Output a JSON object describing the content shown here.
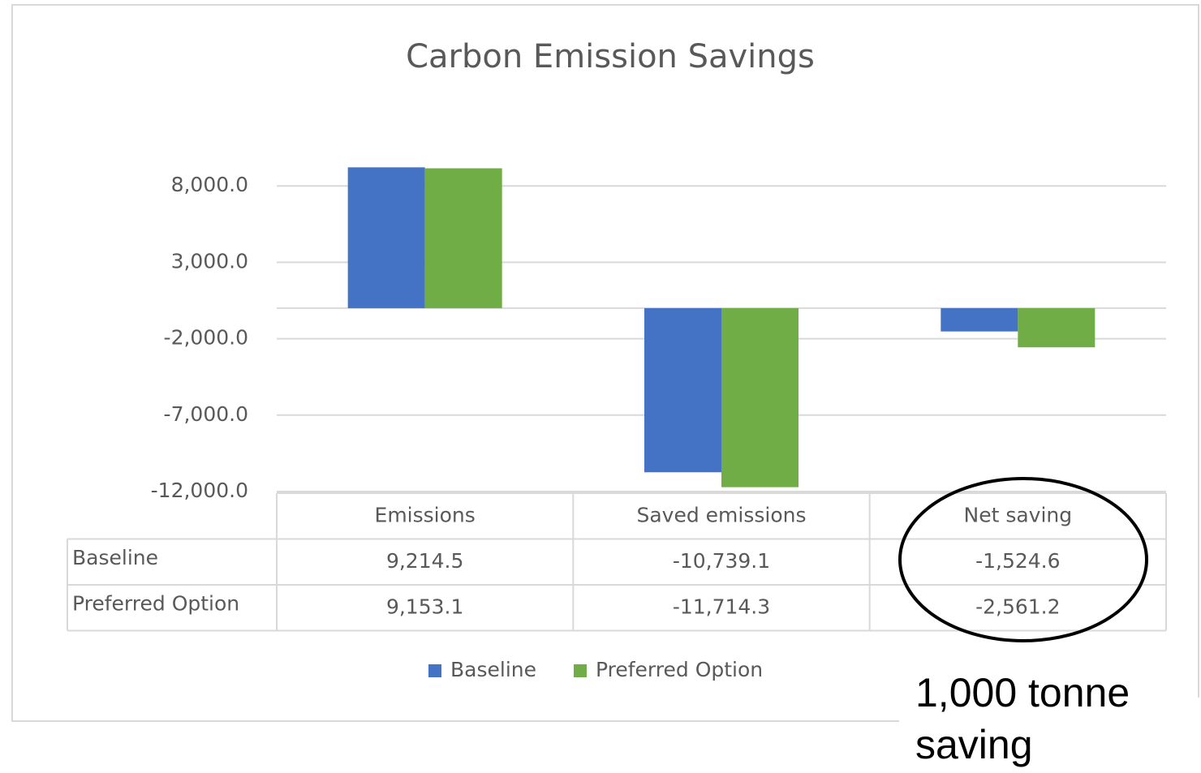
{
  "chart_data": {
    "type": "bar",
    "title": "Carbon Emission Savings",
    "categories": [
      "Emissions",
      "Saved emissions",
      "Net saving"
    ],
    "series": [
      {
        "name": "Baseline",
        "color": "#4472c4",
        "values": [
          9214.5,
          -10739.1,
          -1524.6
        ],
        "value_labels": [
          "9,214.5",
          "-10,739.1",
          "-1,524.6"
        ]
      },
      {
        "name": "Preferred Option",
        "color": "#70ad47",
        "values": [
          9153.1,
          -11714.3,
          -2561.2
        ],
        "value_labels": [
          "9,153.1",
          "-11,714.3",
          "-2,561.2"
        ]
      }
    ],
    "ylim": [
      -12000,
      13000
    ],
    "yticks": [
      {
        "value": 8000,
        "label": "8,000.0"
      },
      {
        "value": 3000,
        "label": "3,000.0"
      },
      {
        "value": -2000,
        "label": "-2,000.0"
      },
      {
        "value": -7000,
        "label": "-7,000.0"
      },
      {
        "value": -12000,
        "label": "-12,000.0"
      }
    ],
    "grid": true,
    "annotation": "1,000 tonne saving"
  }
}
